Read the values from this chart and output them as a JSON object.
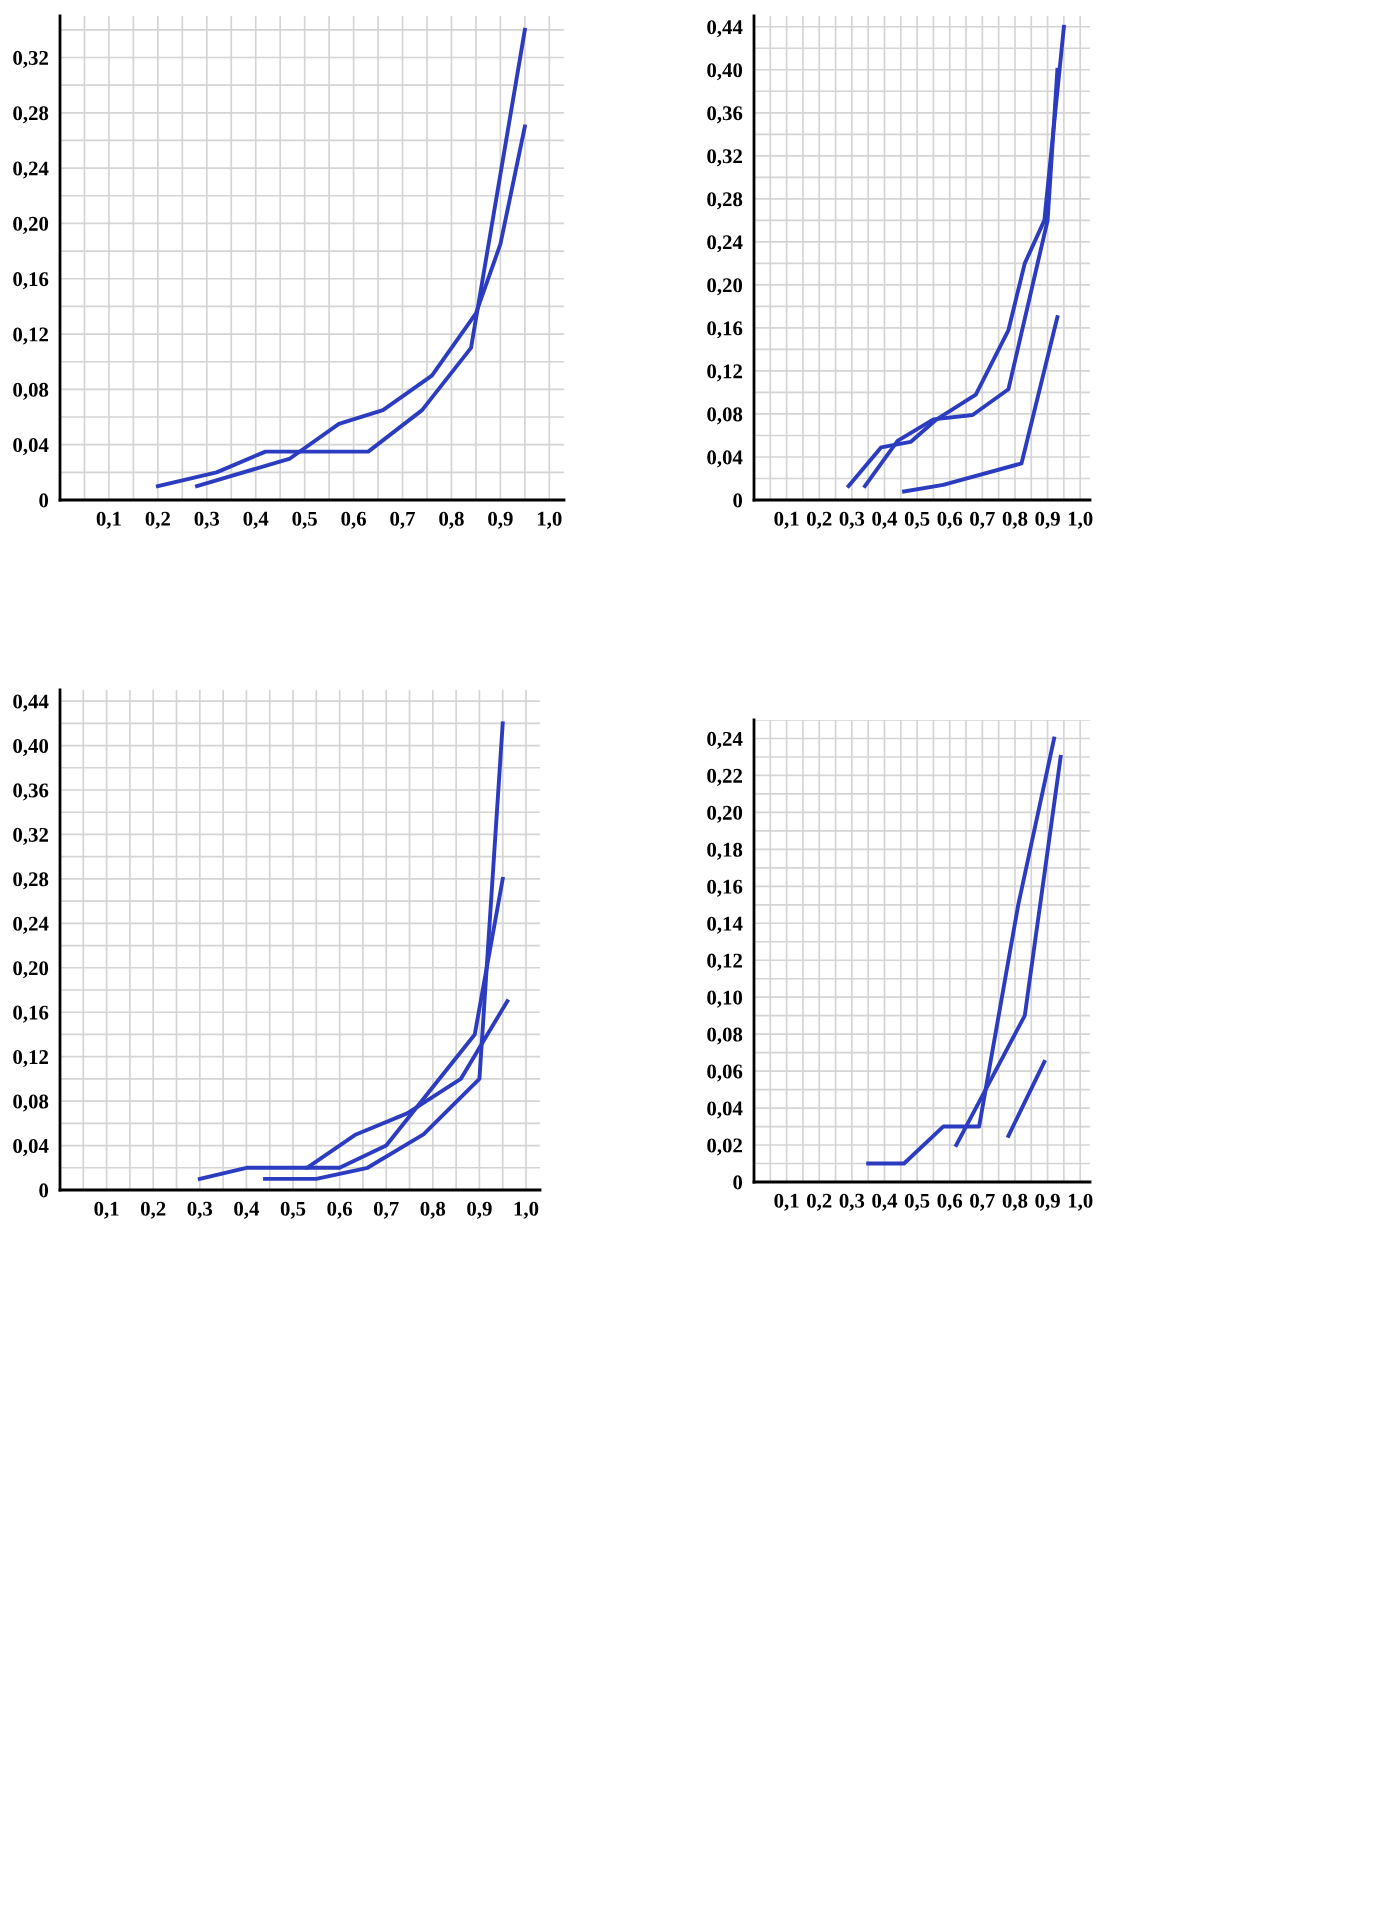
{
  "chart_data": [
    {
      "type": "line",
      "xlim": [
        0,
        1.03
      ],
      "ylim": [
        0,
        0.35
      ],
      "xticks": [
        {
          "value": 0.1,
          "label": "0,1"
        },
        {
          "value": 0.2,
          "label": "0,2"
        },
        {
          "value": 0.3,
          "label": "0,3"
        },
        {
          "value": 0.4,
          "label": "0,4"
        },
        {
          "value": 0.5,
          "label": "0,5"
        },
        {
          "value": 0.6,
          "label": "0,6"
        },
        {
          "value": 0.7,
          "label": "0,7"
        },
        {
          "value": 0.8,
          "label": "0,8"
        },
        {
          "value": 0.9,
          "label": "0,9"
        },
        {
          "value": 1.0,
          "label": "1,0"
        }
      ],
      "yticks": [
        0,
        {
          "value": 0.04,
          "label": "0,04"
        },
        {
          "value": 0.08,
          "label": "0,08"
        },
        {
          "value": 0.12,
          "label": "0,12"
        },
        {
          "value": 0.16,
          "label": "0,16"
        },
        {
          "value": 0.2,
          "label": "0,20"
        },
        {
          "value": 0.24,
          "label": "0,24"
        },
        {
          "value": 0.28,
          "label": "0,28"
        },
        {
          "value": 0.32,
          "label": "0,32"
        }
      ],
      "grid": true,
      "marker": "none",
      "line_style": "solid",
      "series": [
        {
          "color": "#2b3cc0",
          "x": [
            0.2,
            0.32,
            0.42,
            0.63,
            0.74,
            0.84,
            0.95
          ],
          "values": [
            0.01,
            0.02,
            0.035,
            0.035,
            0.065,
            0.11,
            0.34
          ]
        },
        {
          "color": "#2b3cc0",
          "x": [
            0.28,
            0.47,
            0.57,
            0.66,
            0.76,
            0.85,
            0.9,
            0.95
          ],
          "values": [
            0.01,
            0.03,
            0.055,
            0.065,
            0.09,
            0.135,
            0.185,
            0.27
          ]
        }
      ]
    },
    {
      "type": "line",
      "xlim": [
        0,
        1.03
      ],
      "ylim": [
        0,
        0.45
      ],
      "xticks": [
        {
          "value": 0.1,
          "label": "0,1"
        },
        {
          "value": 0.2,
          "label": "0,2"
        },
        {
          "value": 0.3,
          "label": "0,3"
        },
        {
          "value": 0.4,
          "label": "0,4"
        },
        {
          "value": 0.5,
          "label": "0,5"
        },
        {
          "value": 0.6,
          "label": "0,6"
        },
        {
          "value": 0.7,
          "label": "0,7"
        },
        {
          "value": 0.8,
          "label": "0,8"
        },
        {
          "value": 0.9,
          "label": "0,9"
        },
        {
          "value": 1.0,
          "label": "1,0"
        }
      ],
      "yticks": [
        0,
        {
          "value": 0.04,
          "label": "0,04"
        },
        {
          "value": 0.08,
          "label": "0,08"
        },
        {
          "value": 0.12,
          "label": "0,12"
        },
        {
          "value": 0.16,
          "label": "0,16"
        },
        {
          "value": 0.2,
          "label": "0,20"
        },
        {
          "value": 0.24,
          "label": "0,24"
        },
        {
          "value": 0.28,
          "label": "0,28"
        },
        {
          "value": 0.32,
          "label": "0,32"
        },
        {
          "value": 0.36,
          "label": "0,36"
        },
        {
          "value": 0.4,
          "label": "0,40"
        },
        {
          "value": 0.44,
          "label": "0,44"
        }
      ],
      "grid": true,
      "marker": "none",
      "line_style": "solid",
      "series": [
        {
          "color": "#2b3cc0",
          "x": [
            0.29,
            0.39,
            0.48,
            0.56,
            0.68,
            0.78,
            0.83,
            0.89,
            0.95
          ],
          "values": [
            0.013,
            0.049,
            0.054,
            0.075,
            0.098,
            0.158,
            0.22,
            0.26,
            0.44
          ]
        },
        {
          "color": "#2b3cc0",
          "x": [
            0.34,
            0.44,
            0.55,
            0.67,
            0.78,
            0.9,
            0.93
          ],
          "values": [
            0.013,
            0.055,
            0.075,
            0.079,
            0.103,
            0.26,
            0.4
          ]
        },
        {
          "color": "#2b3cc0",
          "x": [
            0.46,
            0.58,
            0.82,
            0.93
          ],
          "values": [
            0.008,
            0.014,
            0.034,
            0.17
          ]
        }
      ]
    },
    {
      "type": "line",
      "xlim": [
        0,
        1.03
      ],
      "ylim": [
        0,
        0.45
      ],
      "xticks": [
        {
          "value": 0.1,
          "label": "0,1"
        },
        {
          "value": 0.2,
          "label": "0,2"
        },
        {
          "value": 0.3,
          "label": "0,3"
        },
        {
          "value": 0.4,
          "label": "0,4"
        },
        {
          "value": 0.5,
          "label": "0,5"
        },
        {
          "value": 0.6,
          "label": "0,6"
        },
        {
          "value": 0.7,
          "label": "0,7"
        },
        {
          "value": 0.8,
          "label": "0,8"
        },
        {
          "value": 0.9,
          "label": "0,9"
        },
        {
          "value": 1.0,
          "label": "1,0"
        }
      ],
      "yticks": [
        0,
        {
          "value": 0.04,
          "label": "0,04"
        },
        {
          "value": 0.08,
          "label": "0,08"
        },
        {
          "value": 0.12,
          "label": "0,12"
        },
        {
          "value": 0.16,
          "label": "0,16"
        },
        {
          "value": 0.2,
          "label": "0,20"
        },
        {
          "value": 0.24,
          "label": "0,24"
        },
        {
          "value": 0.28,
          "label": "0,28"
        },
        {
          "value": 0.32,
          "label": "0,32"
        },
        {
          "value": 0.36,
          "label": "0,36"
        },
        {
          "value": 0.4,
          "label": "0,40"
        },
        {
          "value": 0.44,
          "label": "0,44"
        }
      ],
      "grid": true,
      "marker": "none",
      "line_style": "solid",
      "series": [
        {
          "color": "#2b3cc0",
          "x": [
            0.3,
            0.4,
            0.53,
            0.635,
            0.745,
            0.86,
            0.96
          ],
          "values": [
            0.01,
            0.02,
            0.02,
            0.05,
            0.069,
            0.1,
            0.17
          ]
        },
        {
          "color": "#2b3cc0",
          "x": [
            0.53,
            0.6,
            0.7,
            0.89,
            0.95
          ],
          "values": [
            0.02,
            0.02,
            0.04,
            0.14,
            0.28
          ]
        },
        {
          "color": "#2b3cc0",
          "x": [
            0.44,
            0.55,
            0.66,
            0.78,
            0.9,
            0.95
          ],
          "values": [
            0.01,
            0.01,
            0.02,
            0.05,
            0.1,
            0.42
          ]
        }
      ]
    },
    {
      "type": "line",
      "xlim": [
        0,
        1.03
      ],
      "ylim": [
        0,
        0.25
      ],
      "xticks": [
        {
          "value": 0.1,
          "label": "0,1"
        },
        {
          "value": 0.2,
          "label": "0,2"
        },
        {
          "value": 0.3,
          "label": "0,3"
        },
        {
          "value": 0.4,
          "label": "0,4"
        },
        {
          "value": 0.5,
          "label": "0,5"
        },
        {
          "value": 0.6,
          "label": "0,6"
        },
        {
          "value": 0.7,
          "label": "0,7"
        },
        {
          "value": 0.8,
          "label": "0,8"
        },
        {
          "value": 0.9,
          "label": "0,9"
        },
        {
          "value": 1.0,
          "label": "1,0"
        }
      ],
      "yticks": [
        0,
        {
          "value": 0.02,
          "label": "0,02"
        },
        {
          "value": 0.04,
          "label": "0,04"
        },
        {
          "value": 0.06,
          "label": "0,06"
        },
        {
          "value": 0.08,
          "label": "0,08"
        },
        {
          "value": 0.1,
          "label": "0,10"
        },
        {
          "value": 0.12,
          "label": "0,12"
        },
        {
          "value": 0.14,
          "label": "0,14"
        },
        {
          "value": 0.16,
          "label": "0,16"
        },
        {
          "value": 0.18,
          "label": "0,18"
        },
        {
          "value": 0.2,
          "label": "0,20"
        },
        {
          "value": 0.22,
          "label": "0,22"
        },
        {
          "value": 0.24,
          "label": "0,24"
        }
      ],
      "grid": true,
      "marker": "none",
      "line_style": "solid",
      "series": [
        {
          "color": "#2b3cc0",
          "x": [
            0.35,
            0.46,
            0.58,
            0.69,
            0.81,
            0.92
          ],
          "values": [
            0.01,
            0.01,
            0.03,
            0.03,
            0.15,
            0.24
          ]
        },
        {
          "color": "#2b3cc0",
          "x": [
            0.62,
            0.83,
            0.94
          ],
          "values": [
            0.02,
            0.09,
            0.23
          ]
        },
        {
          "color": "#2b3cc0",
          "x": [
            0.78,
            0.89
          ],
          "values": [
            0.025,
            0.065
          ]
        }
      ]
    }
  ]
}
